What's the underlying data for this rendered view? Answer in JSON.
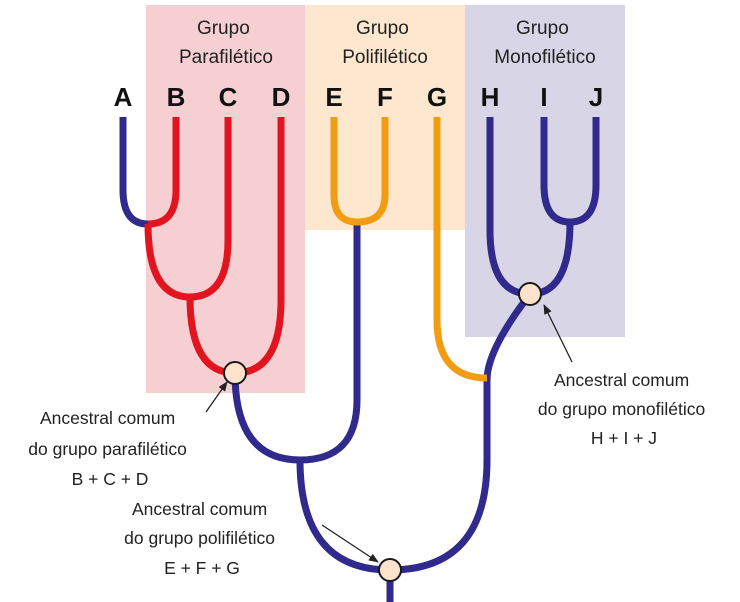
{
  "colors": {
    "navy": "#2f2a8c",
    "red": "#e2141f",
    "orange": "#f29c11",
    "paraphyletic_bg": "#f6cfd3",
    "polyphyletic_bg": "#fde8cf",
    "monophyletic_bg": "#d8d5e6",
    "node_fill": "#fde3cc"
  },
  "groups": {
    "paraphyletic": {
      "line1": "Grupo",
      "line2": "Parafilético"
    },
    "polyphyletic": {
      "line1": "Grupo",
      "line2": "Polifilético"
    },
    "monophyletic": {
      "line1": "Grupo",
      "line2": "Monofilético"
    }
  },
  "taxa": [
    "A",
    "B",
    "C",
    "D",
    "E",
    "F",
    "G",
    "H",
    "I",
    "J"
  ],
  "annotations": {
    "paraphyletic": {
      "line1": "Ancestral comum",
      "line2": "do grupo parafilético",
      "line3": "B + C + D"
    },
    "polyphyletic": {
      "line1": "Ancestral comum",
      "line2": "do grupo polifilético",
      "line3": "E + F + G"
    },
    "monophyletic": {
      "line1": "Ancestral comum",
      "line2": "do grupo monofilético",
      "line3": "H + I + J"
    }
  }
}
